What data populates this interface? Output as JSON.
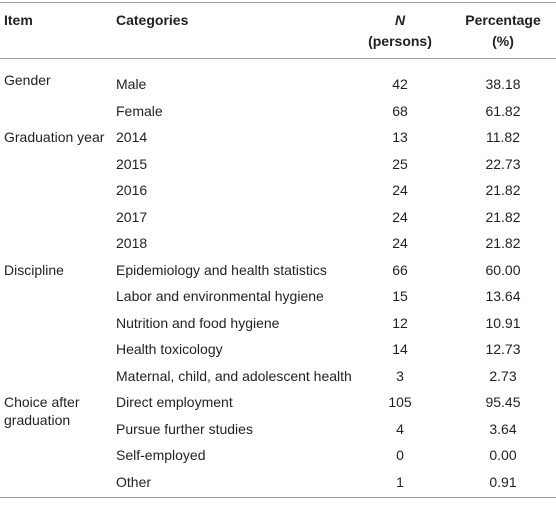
{
  "table": {
    "header": [
      [
        "Item"
      ],
      [
        "Categories"
      ],
      [
        "N",
        "(persons)"
      ],
      [
        "Percentage",
        "(%)"
      ]
    ],
    "groups": [
      {
        "item": "Gender",
        "rows": [
          [
            "Male",
            "42",
            "38.18"
          ],
          [
            "Female",
            "68",
            "61.82"
          ]
        ]
      },
      {
        "item": "Graduation year",
        "rows": [
          [
            "2014",
            "13",
            "11.82"
          ],
          [
            "2015",
            "25",
            "22.73"
          ],
          [
            "2016",
            "24",
            "21.82"
          ],
          [
            "2017",
            "24",
            "21.82"
          ],
          [
            "2018",
            "24",
            "21.82"
          ]
        ]
      },
      {
        "item": "Discipline",
        "rows": [
          [
            "Epidemiology and health statistics",
            "66",
            "60.00"
          ],
          [
            "Labor and environmental hygiene",
            "15",
            "13.64"
          ],
          [
            "Nutrition and food hygiene",
            "12",
            "10.91"
          ],
          [
            "Health toxicology",
            "14",
            "12.73"
          ],
          [
            "Maternal, child, and adolescent health",
            "3",
            "2.73"
          ]
        ]
      },
      {
        "item": "Choice after graduation",
        "rows": [
          [
            "Direct employment",
            "105",
            "95.45"
          ],
          [
            "Pursue further studies",
            "4",
            "3.64"
          ],
          [
            "Self-employed",
            "0",
            "0.00"
          ],
          [
            "Other",
            "1",
            "0.91"
          ]
        ]
      }
    ]
  }
}
